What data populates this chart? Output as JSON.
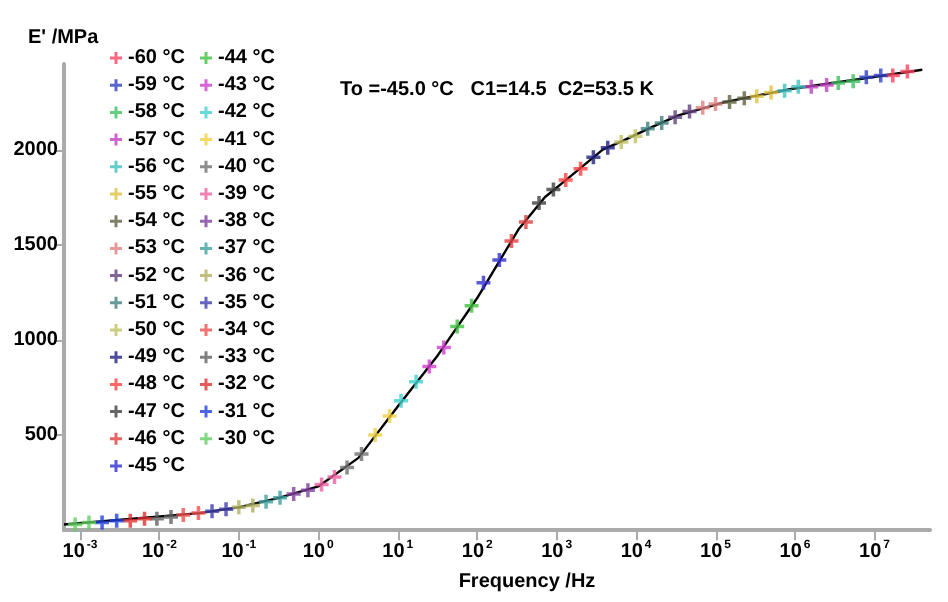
{
  "chart_data": {
    "type": "scatter",
    "xlabel": "Frequency /Hz",
    "ylabel": "E' /MPa",
    "annotations": [
      "To =-45.0 °C   C1=14.5  C2=53.5 K"
    ],
    "log": "x",
    "marker": "cross",
    "legend": "top left",
    "xlim": [
      0.00063,
      50000000
    ],
    "ylim": [
      0,
      2450
    ],
    "xticks": [
      {
        "value": 0.001,
        "label": "10$^{-3}$"
      },
      {
        "value": 0.01,
        "label": "10$^{-2}$"
      },
      {
        "value": 0.1,
        "label": "10$^{-1}$"
      },
      {
        "value": 1,
        "label": "10$^{0}$"
      },
      {
        "value": 10,
        "label": "10$^{1}$"
      },
      {
        "value": 100,
        "label": "10$^{2}$"
      },
      {
        "value": 1000,
        "label": "10$^{3}$"
      },
      {
        "value": 10000,
        "label": "10$^{4}$"
      },
      {
        "value": 100000,
        "label": "10$^{5}$"
      },
      {
        "value": 1000000,
        "label": "10$^{6}$"
      },
      {
        "value": 10000000,
        "label": "10$^{7}$"
      }
    ],
    "yticks": [
      500,
      1000,
      1500,
      2000
    ],
    "series": [
      {
        "name": "-60 °C",
        "color": "#ff4060",
        "x": [
          26000000,
          17000000
        ],
        "values": [
          2410,
          2390
        ]
      },
      {
        "name": "-59 °C",
        "color": "#3040c0",
        "x": [
          12000000,
          7900000
        ],
        "values": [
          2390,
          2380
        ]
      },
      {
        "name": "-58 °C",
        "color": "#40c060",
        "x": [
          5400000,
          3500000
        ],
        "values": [
          2360,
          2350
        ]
      },
      {
        "name": "-57 °C",
        "color": "#c040c0",
        "x": [
          2500000,
          1600000
        ],
        "values": [
          2340,
          2330
        ]
      },
      {
        "name": "-56 °C",
        "color": "#40c0c0",
        "x": [
          1100000,
          740000
        ],
        "values": [
          2330,
          2310
        ]
      },
      {
        "name": "-55 °C",
        "color": "#e0c040",
        "x": [
          500000,
          330000
        ],
        "values": [
          2300,
          2280
        ]
      },
      {
        "name": "-54 °C",
        "color": "#606040",
        "x": [
          230000,
          150000
        ],
        "values": [
          2270,
          2250
        ]
      },
      {
        "name": "-53 °C",
        "color": "#e08080",
        "x": [
          100000,
          69000
        ],
        "values": [
          2240,
          2220
        ]
      },
      {
        "name": "-52 °C",
        "color": "#604080",
        "x": [
          47000,
          31000
        ],
        "values": [
          2200,
          2170
        ]
      },
      {
        "name": "-51 °C",
        "color": "#408080",
        "x": [
          21000,
          14000
        ],
        "values": [
          2140,
          2110
        ]
      },
      {
        "name": "-50 °C",
        "color": "#c0c060",
        "x": [
          9800,
          6500
        ],
        "values": [
          2070,
          2040
        ]
      },
      {
        "name": "-49 °C",
        "color": "#202080",
        "x": [
          4400,
          2900
        ],
        "values": [
          2010,
          1960
        ]
      },
      {
        "name": "-48 °C",
        "color": "#ff4040",
        "x": [
          2000,
          1300
        ],
        "values": [
          1900,
          1840
        ]
      },
      {
        "name": "-47 °C",
        "color": "#404040",
        "x": [
          910,
          600
        ],
        "values": [
          1790,
          1720
        ]
      },
      {
        "name": "-46 °C",
        "color": "#e04040",
        "x": [
          410,
          270
        ],
        "values": [
          1620,
          1520
        ]
      },
      {
        "name": "-45 °C",
        "color": "#3030d0",
        "x": [
          190,
          120
        ],
        "values": [
          1420,
          1300
        ]
      },
      {
        "name": "-44 °C",
        "color": "#40c040",
        "x": [
          85,
          56
        ],
        "values": [
          1180,
          1070
        ]
      },
      {
        "name": "-43 °C",
        "color": "#d040d0",
        "x": [
          38,
          25
        ],
        "values": [
          960,
          860
        ]
      },
      {
        "name": "-42 °C",
        "color": "#40d0d0",
        "x": [
          17,
          11
        ],
        "values": [
          780,
          680
        ]
      },
      {
        "name": "-41 °C",
        "color": "#f0d040",
        "x": [
          7.9,
          5.2
        ],
        "values": [
          600,
          500
        ]
      },
      {
        "name": "-40 °C",
        "color": "#707070",
        "x": [
          3.5,
          2.3
        ],
        "values": [
          400,
          330
        ]
      },
      {
        "name": "-39 °C",
        "color": "#f060a0",
        "x": [
          1.6,
          1.1
        ],
        "values": [
          280,
          240
        ]
      },
      {
        "name": "-38 °C",
        "color": "#8040a0",
        "x": [
          0.74,
          0.49
        ],
        "values": [
          210,
          190
        ]
      },
      {
        "name": "-37 °C",
        "color": "#40a0a0",
        "x": [
          0.33,
          0.22
        ],
        "values": [
          170,
          150
        ]
      },
      {
        "name": "-36 °C",
        "color": "#b0b060",
        "x": [
          0.15,
          0.1
        ],
        "values": [
          130,
          120
        ]
      },
      {
        "name": "-35 °C",
        "color": "#4040b0",
        "x": [
          0.069,
          0.046
        ],
        "values": [
          110,
          100
        ]
      },
      {
        "name": "-34 °C",
        "color": "#f05050",
        "x": [
          0.031,
          0.02
        ],
        "values": [
          90,
          80
        ]
      },
      {
        "name": "-33 °C",
        "color": "#606060",
        "x": [
          0.014,
          0.0093
        ],
        "values": [
          70,
          60
        ]
      },
      {
        "name": "-32 °C",
        "color": "#e03030",
        "x": [
          0.0065,
          0.0043
        ],
        "values": [
          60,
          50
        ]
      },
      {
        "name": "-31 °C",
        "color": "#2040e0",
        "x": [
          0.0029,
          0.0019
        ],
        "values": [
          50,
          40
        ]
      },
      {
        "name": "-30 °C",
        "color": "#60d060",
        "x": [
          0.0013,
          0.00087
        ],
        "values": [
          40,
          30
        ]
      },
      {
        "type": "line",
        "marker": "none",
        "color": "#000000",
        "x": [
          0.00063,
          0.0046,
          0.032,
          0.1,
          0.32,
          1,
          3.2,
          10,
          32,
          100,
          330,
          710,
          1400,
          3800,
          7100,
          16000,
          34000,
          130000,
          930000,
          6300000,
          40000000
        ],
        "values": [
          30,
          60,
          90,
          120,
          170,
          230,
          380,
          650,
          920,
          1220,
          1580,
          1750,
          1850,
          2000,
          2050,
          2120,
          2180,
          2250,
          2320,
          2370,
          2420
        ]
      }
    ]
  }
}
